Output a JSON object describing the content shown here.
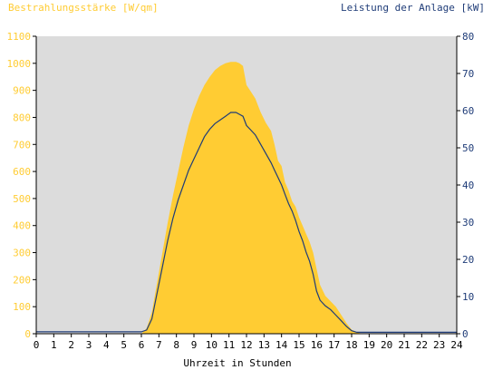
{
  "chart_data": {
    "type": "area",
    "left_title": "Bestrahlungsstärke [W/qm]",
    "right_title": "Leistung der Anlage [kW]",
    "xlabel": "Uhrzeit in Stunden",
    "x_ticks": [
      "0",
      "1",
      "2",
      "3",
      "4",
      "5",
      "6",
      "7",
      "8",
      "9",
      "10",
      "11",
      "12",
      "13",
      "14",
      "15",
      "16",
      "17",
      "18",
      "19",
      "20",
      "21",
      "22",
      "23",
      "24"
    ],
    "xlim": [
      0,
      24
    ],
    "y_left_ticks": [
      "0",
      "100",
      "200",
      "300",
      "400",
      "500",
      "600",
      "700",
      "800",
      "900",
      "1000",
      "1100"
    ],
    "y_left_lim": [
      0,
      1100
    ],
    "y_right_ticks": [
      "0",
      "10",
      "20",
      "30",
      "40",
      "50",
      "60",
      "70",
      "80"
    ],
    "y_right_lim": [
      0,
      80
    ],
    "colors": {
      "irradiance": "#ffcc33",
      "power": "#1f3c78",
      "plot_background": "#dcdcdc",
      "left_axis_text": "#ffcc33",
      "right_axis_text": "#1f3c78"
    },
    "series": [
      {
        "axis": "left",
        "style": "area",
        "x": [
          0,
          6.0,
          6.3,
          6.6,
          6.9,
          7.2,
          7.5,
          7.8,
          8.1,
          8.4,
          8.7,
          9.0,
          9.3,
          9.6,
          9.9,
          10.2,
          10.5,
          10.8,
          11.1,
          11.4,
          11.6,
          11.8,
          12.0,
          12.2,
          12.5,
          12.8,
          13.1,
          13.4,
          13.6,
          13.8,
          14.0,
          14.2,
          14.4,
          14.6,
          14.8,
          15.0,
          15.2,
          15.4,
          15.6,
          15.8,
          16.0,
          16.2,
          16.5,
          16.8,
          17.1,
          17.4,
          17.7,
          18.0,
          18.3,
          18.6,
          24
        ],
        "values": [
          0,
          0,
          20,
          80,
          190,
          300,
          410,
          510,
          600,
          690,
          770,
          830,
          880,
          920,
          950,
          975,
          990,
          1000,
          1005,
          1005,
          1000,
          990,
          920,
          900,
          870,
          820,
          780,
          750,
          700,
          640,
          620,
          560,
          530,
          490,
          470,
          430,
          400,
          370,
          340,
          300,
          240,
          180,
          140,
          120,
          100,
          70,
          40,
          15,
          5,
          0,
          0
        ]
      },
      {
        "axis": "right",
        "style": "line",
        "x": [
          0,
          6.0,
          6.3,
          6.6,
          6.9,
          7.2,
          7.5,
          7.8,
          8.1,
          8.4,
          8.7,
          9.0,
          9.3,
          9.6,
          9.9,
          10.2,
          10.5,
          10.8,
          11.1,
          11.4,
          11.6,
          11.8,
          12.0,
          12.2,
          12.5,
          12.8,
          13.1,
          13.4,
          13.6,
          13.8,
          14.0,
          14.2,
          14.4,
          14.6,
          14.8,
          15.0,
          15.2,
          15.4,
          15.6,
          15.8,
          16.0,
          16.2,
          16.5,
          16.8,
          17.1,
          17.4,
          17.7,
          18.0,
          18.3,
          18.6,
          24
        ],
        "values": [
          0.5,
          0.5,
          1.0,
          4.0,
          11.0,
          18.0,
          25.0,
          31.0,
          36.0,
          40.0,
          44.0,
          47.0,
          50.0,
          53.0,
          55.0,
          56.5,
          57.5,
          58.5,
          59.5,
          59.5,
          59.0,
          58.5,
          56.0,
          55.0,
          53.5,
          51.0,
          48.5,
          46.0,
          44.0,
          42.0,
          40.0,
          37.5,
          35.0,
          33.0,
          30.5,
          27.5,
          25.0,
          22.0,
          19.5,
          16.0,
          11.5,
          9.0,
          7.5,
          6.5,
          5.0,
          3.5,
          2.0,
          0.8,
          0.4,
          0.4,
          0.4
        ]
      }
    ]
  }
}
